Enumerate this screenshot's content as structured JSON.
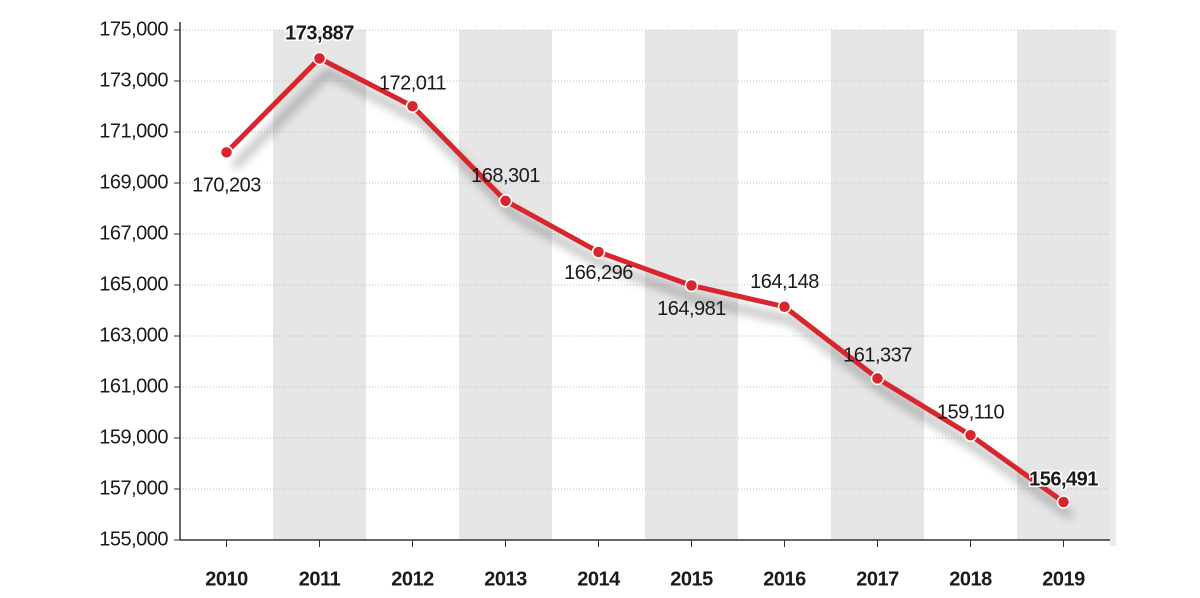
{
  "chart_data": {
    "type": "line",
    "categories": [
      "2010",
      "2011",
      "2012",
      "2013",
      "2014",
      "2015",
      "2016",
      "2017",
      "2018",
      "2019"
    ],
    "series": [
      {
        "color": "#d7262d",
        "values": [
          170203,
          173887,
          172011,
          168301,
          166296,
          164981,
          164148,
          161337,
          159110,
          156491
        ],
        "value_labels": [
          "170,203",
          "173,887",
          "172,011",
          "168,301",
          "166,296",
          "164,981",
          "164,148",
          "161,337",
          "159,110",
          "156,491"
        ]
      }
    ],
    "ylim": [
      155000,
      175000
    ],
    "yticks": [
      {
        "value": 155000,
        "label": "155,000"
      },
      {
        "value": 157000,
        "label": "157,000"
      },
      {
        "value": 159000,
        "label": "159,000"
      },
      {
        "value": 161000,
        "label": "161,000"
      },
      {
        "value": 163000,
        "label": "163,000"
      },
      {
        "value": 165000,
        "label": "165,000"
      },
      {
        "value": 167000,
        "label": "167,000"
      },
      {
        "value": 169000,
        "label": "169,000"
      },
      {
        "value": 171000,
        "label": "171,000"
      },
      {
        "value": 173000,
        "label": "173,000"
      },
      {
        "value": 175000,
        "label": "175,000"
      }
    ],
    "grid": true
  }
}
